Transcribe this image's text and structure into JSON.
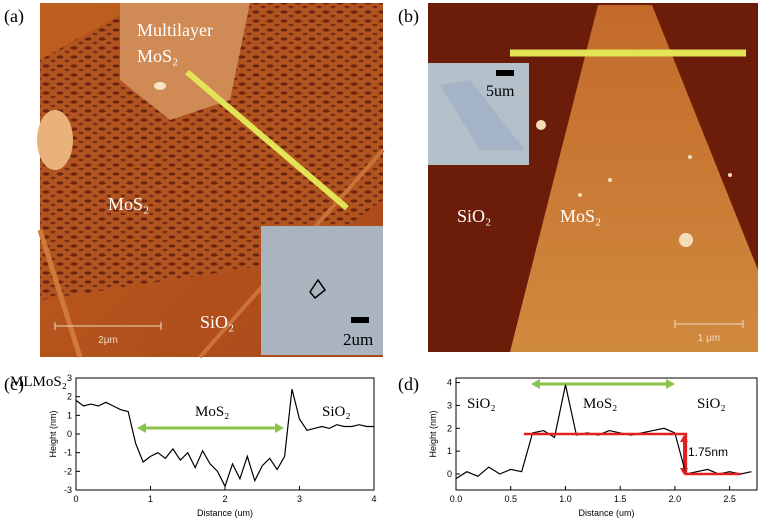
{
  "panels": {
    "a": {
      "label": "(a)",
      "multilayer": "Multilayer",
      "multilayer_mos2": "MoS₂",
      "mos2": "MoS₂",
      "sio2": "SiO₂",
      "scale": "2μm",
      "inset_scale": "2um"
    },
    "b": {
      "label": "(b)",
      "inset_scale": "5um",
      "sio2": "SiO₂",
      "mos2": "MoS₂",
      "scale": "1 μm"
    },
    "c": {
      "label": "(c)"
    },
    "d": {
      "label": "(d)"
    }
  },
  "chart_data": [
    {
      "type": "line",
      "xlabel": "Distance (um)",
      "ylabel": "Height (nm)",
      "xlim": [
        0,
        4
      ],
      "ylim": [
        -3,
        3
      ],
      "xticks": [
        0,
        1,
        2,
        3,
        4
      ],
      "yticks": [
        -3,
        -2,
        -1,
        0,
        1,
        2,
        3
      ],
      "annotations": [
        "MLMoS₂",
        "MoS₂",
        "SiO₂"
      ],
      "series": [
        {
          "color": "#000000",
          "x": [
            0,
            0.1,
            0.2,
            0.3,
            0.4,
            0.5,
            0.6,
            0.7,
            0.8,
            0.9,
            1,
            1.1,
            1.2,
            1.3,
            1.4,
            1.5,
            1.6,
            1.7,
            1.8,
            1.9,
            2,
            2.1,
            2.2,
            2.3,
            2.4,
            2.5,
            2.6,
            2.7,
            2.8,
            2.9,
            3,
            3.1,
            3.2,
            3.3,
            3.4,
            3.5,
            3.6,
            3.7,
            3.8,
            3.9,
            4
          ],
          "values": [
            1.8,
            1.5,
            1.6,
            1.5,
            1.7,
            1.5,
            1.3,
            1.2,
            -0.5,
            -1.5,
            -1.2,
            -1.0,
            -1.3,
            -0.8,
            -1.4,
            -1.0,
            -1.8,
            -0.9,
            -1.6,
            -2.0,
            -2.8,
            -1.6,
            -2.4,
            -1.2,
            -2.5,
            -1.7,
            -1.3,
            -1.9,
            -1.2,
            2.4,
            0.8,
            0.2,
            0.3,
            0.4,
            0.3,
            0.5,
            0.4,
            0.4,
            0.5,
            0.4,
            0.4
          ]
        }
      ]
    },
    {
      "type": "line",
      "xlabel": "Distance (um)",
      "ylabel": "Height (nm)",
      "xlim": [
        0,
        2.75
      ],
      "ylim": [
        -0.7,
        4.2
      ],
      "xticks": [
        {
          "value": 0,
          "label": "0.0"
        },
        0.5,
        {
          "value": 1,
          "label": "1.0"
        },
        1.5,
        {
          "value": 2,
          "label": "2.0"
        },
        2.5
      ],
      "yticks": [
        0,
        1,
        2,
        3,
        4
      ],
      "annotations": [
        "SiO₂",
        "MoS₂",
        "SiO₂",
        "1.75nm"
      ],
      "series": [
        {
          "color": "#000000",
          "x": [
            0,
            0.1,
            0.2,
            0.3,
            0.4,
            0.5,
            0.6,
            0.7,
            0.8,
            0.9,
            1,
            1.1,
            1.2,
            1.3,
            1.4,
            1.5,
            1.6,
            1.7,
            1.8,
            1.9,
            2,
            2.1,
            2.2,
            2.3,
            2.4,
            2.5,
            2.6,
            2.7
          ],
          "values": [
            -0.2,
            0.1,
            -0.1,
            0.3,
            0.0,
            0.2,
            0.1,
            1.8,
            1.9,
            1.6,
            3.9,
            1.7,
            1.8,
            1.7,
            1.9,
            1.8,
            1.7,
            1.8,
            1.9,
            2.0,
            1.8,
            0.0,
            0.1,
            0.2,
            0.0,
            0.1,
            0.0,
            0.1
          ]
        },
        {
          "color": "#e02020",
          "x": [
            0.62,
            2.1,
            2.1,
            2.6
          ],
          "values": [
            1.75,
            1.75,
            0,
            0
          ]
        }
      ]
    }
  ]
}
